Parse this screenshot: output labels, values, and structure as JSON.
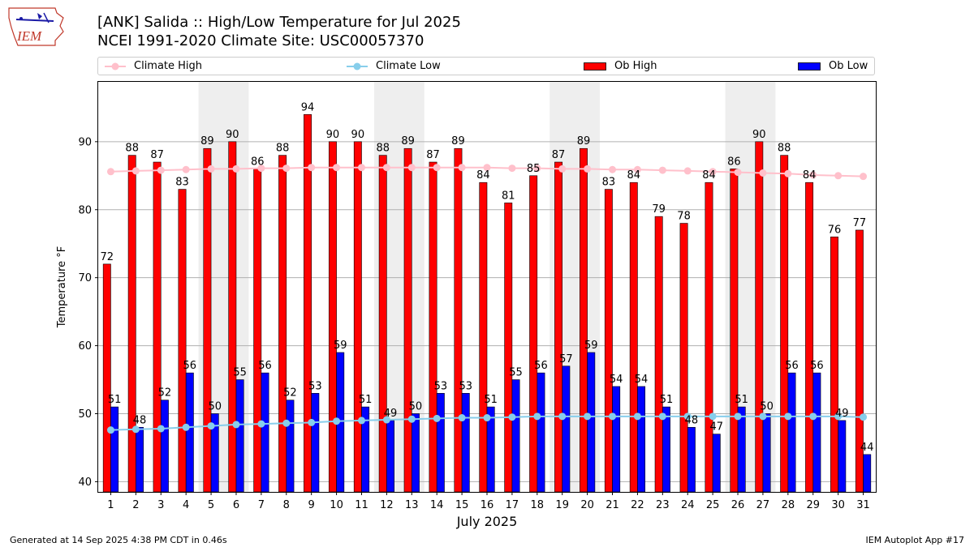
{
  "title": "[ANK] Salida :: High/Low Temperature for Jul 2025",
  "subtitle": "NCEI 1991-2020 Climate Site: USC00057370",
  "logo_text": "IEM",
  "legend": {
    "climate_high": "Climate High",
    "climate_low": "Climate Low",
    "ob_high": "Ob High",
    "ob_low": "Ob Low"
  },
  "footer": {
    "left": "Generated at 14 Sep 2025 4:38 PM CDT in 0.46s",
    "right": "IEM Autoplot App #17"
  },
  "colors": {
    "ob_high": "#ff0000",
    "ob_low": "#0000ff",
    "climate_high": "#ffc0cb",
    "climate_low": "#87ceeb",
    "weekend_shade": "#eeeeee",
    "gridline": "#b0b0b0"
  },
  "chart_data": {
    "type": "bar",
    "title": "[ANK] Salida :: High/Low Temperature for Jul 2025",
    "xlabel": "July 2025",
    "ylabel": "Temperature °F",
    "ylim": [
      38.5,
      98.8
    ],
    "yticks": [
      40,
      50,
      60,
      70,
      80,
      90
    ],
    "grid": "horizontal",
    "categories": [
      "1",
      "2",
      "3",
      "4",
      "5",
      "6",
      "7",
      "8",
      "9",
      "10",
      "11",
      "12",
      "13",
      "14",
      "15",
      "16",
      "17",
      "18",
      "19",
      "20",
      "21",
      "22",
      "23",
      "24",
      "25",
      "26",
      "27",
      "28",
      "29",
      "30",
      "31"
    ],
    "weekend_shaded_days": [
      [
        5,
        6
      ],
      [
        12,
        13
      ],
      [
        19,
        20
      ],
      [
        26,
        27
      ]
    ],
    "series": [
      {
        "name": "Ob High",
        "kind": "bar",
        "values": [
          72,
          88,
          87,
          83,
          89,
          90,
          86,
          88,
          94,
          90,
          90,
          88,
          89,
          87,
          89,
          84,
          81,
          85,
          87,
          89,
          83,
          84,
          79,
          78,
          84,
          86,
          90,
          88,
          84,
          76,
          77
        ]
      },
      {
        "name": "Ob Low",
        "kind": "bar",
        "values": [
          51,
          48,
          52,
          56,
          50,
          55,
          56,
          52,
          53,
          59,
          51,
          49,
          50,
          53,
          53,
          51,
          55,
          56,
          57,
          59,
          54,
          54,
          51,
          48,
          47,
          51,
          50,
          56,
          56,
          49,
          44
        ]
      },
      {
        "name": "Climate High",
        "kind": "line",
        "values": [
          85.6,
          85.7,
          85.8,
          85.9,
          86.0,
          86.0,
          86.1,
          86.1,
          86.2,
          86.2,
          86.2,
          86.2,
          86.2,
          86.2,
          86.2,
          86.2,
          86.1,
          86.1,
          86.0,
          86.0,
          85.9,
          85.9,
          85.8,
          85.7,
          85.6,
          85.5,
          85.4,
          85.3,
          85.1,
          85.0,
          84.9
        ]
      },
      {
        "name": "Climate Low",
        "kind": "line",
        "values": [
          47.6,
          47.7,
          47.8,
          48.0,
          48.2,
          48.4,
          48.5,
          48.6,
          48.7,
          48.9,
          49.0,
          49.1,
          49.2,
          49.3,
          49.4,
          49.4,
          49.5,
          49.6,
          49.6,
          49.6,
          49.6,
          49.6,
          49.6,
          49.6,
          49.6,
          49.6,
          49.6,
          49.6,
          49.6,
          49.6,
          49.5
        ]
      }
    ]
  }
}
